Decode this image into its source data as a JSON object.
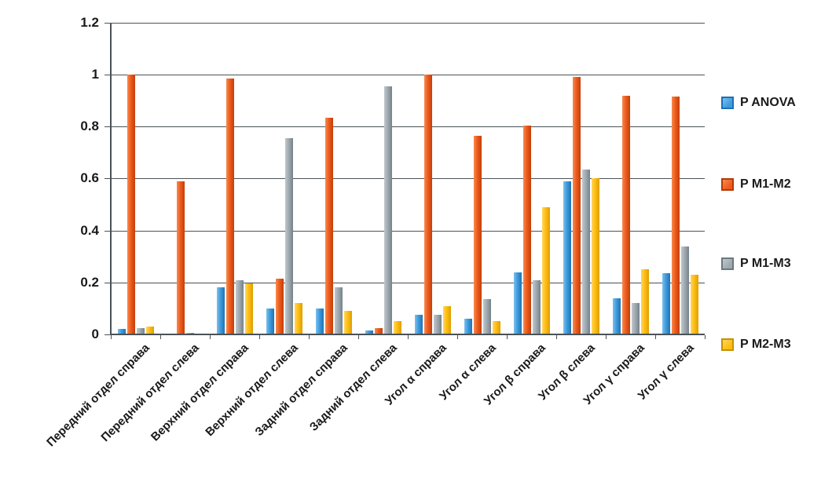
{
  "chart_data": {
    "type": "bar",
    "title": "",
    "xlabel": "",
    "ylabel": "",
    "categories": [
      "Передний отдел справа",
      "Передний отдел слева",
      "Верхний отдел справа",
      "Верхний отдел слева",
      "Задний отдел справа",
      "Задний отдел слева",
      "Угол α справа",
      "Угол α слева",
      "Угол β справа",
      "Угол β слева",
      "Угол γ справа",
      "Угол γ слева"
    ],
    "series": [
      {
        "name": "P ANOVA",
        "color": "#3e9cdd",
        "color_light": "#7cc0ef",
        "color_dark": "#2272b2",
        "border": "#1f6fb5",
        "values": [
          0.02,
          0,
          0.18,
          0.1,
          0.1,
          0.015,
          0.075,
          0.06,
          0.24,
          0.59,
          0.14,
          0.235
        ]
      },
      {
        "name": "P M1-M2",
        "color": "#ee5b1e",
        "color_light": "#f98a4d",
        "color_dark": "#c24009",
        "border": "#b33a05",
        "values": [
          1.0,
          0.59,
          0.985,
          0.215,
          0.835,
          0.025,
          1.0,
          0.765,
          0.805,
          0.99,
          0.92,
          0.915
        ]
      },
      {
        "name": "P M1-M3",
        "color": "#9fa9b0",
        "color_light": "#c0c8cd",
        "color_dark": "#75828a",
        "border": "#6b7880",
        "values": [
          0.025,
          0.005,
          0.21,
          0.755,
          0.18,
          0.955,
          0.075,
          0.135,
          0.21,
          0.635,
          0.12,
          0.34
        ]
      },
      {
        "name": "P M2-M3",
        "color": "#ffbd13",
        "color_light": "#ffd75e",
        "color_dark": "#de9f00",
        "border": "#c29200",
        "values": [
          0.03,
          0,
          0.195,
          0.12,
          0.09,
          0.05,
          0.11,
          0.05,
          0.49,
          0.6,
          0.25,
          0.23
        ]
      }
    ],
    "ylim": [
      0,
      1.2
    ],
    "yticks": [
      0,
      0.2,
      0.4,
      0.6,
      0.8,
      1,
      1.2
    ],
    "ytick_labels": [
      "0",
      "0.2",
      "0.4",
      "0.6",
      "0.8",
      "1",
      "1.2"
    ],
    "grid": true,
    "legend_position": "right",
    "axis_color": "#4a5256",
    "text_color": "#1a1a1a",
    "background_color": "#ffffff"
  }
}
